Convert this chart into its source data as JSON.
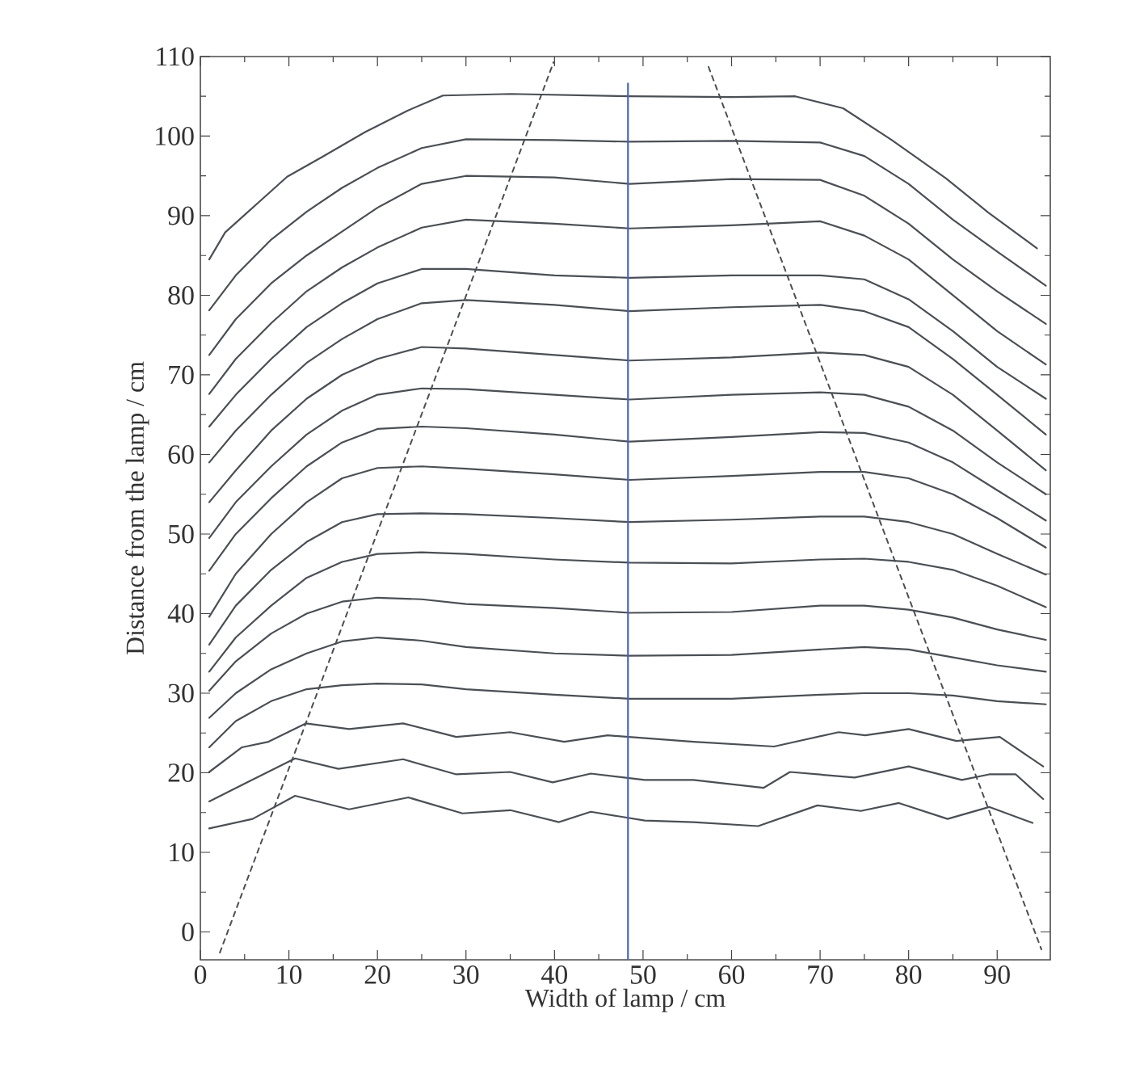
{
  "chart_data": {
    "type": "line",
    "xlabel": "Width of lamp / cm",
    "ylabel": "Distance from the lamp / cm",
    "xlim": [
      0,
      96
    ],
    "ylim": [
      -3.5,
      110
    ],
    "xticks": [
      0,
      10,
      20,
      30,
      40,
      50,
      60,
      70,
      80,
      90
    ],
    "yticks": [
      0,
      10,
      20,
      30,
      40,
      50,
      60,
      70,
      80,
      90,
      100,
      110
    ],
    "line_style": "solid",
    "x": [
      1,
      4,
      8,
      12,
      16,
      20,
      25,
      30,
      40,
      48.5,
      60,
      70,
      75,
      80,
      85,
      90,
      95.5
    ],
    "series": [
      {
        "color": "#4a4f55",
        "x": [
          1,
          2.8,
          6.5,
          9.8,
          13.8,
          18.6,
          23.4,
          27.4,
          35,
          48.5,
          60,
          67.2,
          72.6,
          78.1,
          84.2,
          89,
          94.5
        ],
        "values": [
          84.5,
          87.9,
          91.6,
          94.9,
          97.4,
          100.5,
          103.2,
          105.1,
          105.3,
          105,
          104.9,
          105,
          103.5,
          99.5,
          94.7,
          90.4,
          85.9
        ]
      },
      {
        "color": "#4a4f55",
        "values": [
          78.1,
          82.5,
          87,
          90.5,
          93.5,
          96,
          98.5,
          99.6,
          99.5,
          99.3,
          99.4,
          99.2,
          97.5,
          94,
          89.5,
          85.5,
          81.2
        ]
      },
      {
        "color": "#4a4f55",
        "values": [
          72.5,
          77,
          81.5,
          85,
          88,
          91,
          94,
          95,
          94.8,
          94,
          94.6,
          94.5,
          92.5,
          89,
          84.5,
          80.5,
          76.4
        ]
      },
      {
        "color": "#4a4f55",
        "values": [
          67.6,
          72,
          76.5,
          80.5,
          83.5,
          86,
          88.5,
          89.5,
          89,
          88.4,
          88.8,
          89.3,
          87.5,
          84.5,
          80,
          75.5,
          71.3
        ]
      },
      {
        "color": "#4a4f55",
        "values": [
          63.5,
          67.5,
          72,
          76,
          79,
          81.5,
          83.3,
          83.3,
          82.5,
          82.2,
          82.5,
          82.5,
          82,
          79.5,
          75.5,
          71,
          67
        ]
      },
      {
        "color": "#4a4f55",
        "values": [
          59,
          63,
          67.5,
          71.5,
          74.5,
          77,
          79,
          79.4,
          78.8,
          78,
          78.5,
          78.8,
          78,
          76,
          72,
          67.5,
          62.5
        ]
      },
      {
        "color": "#4a4f55",
        "values": [
          54,
          58,
          63,
          67,
          70,
          72,
          73.5,
          73.3,
          72.5,
          71.8,
          72.2,
          72.8,
          72.5,
          71,
          67.5,
          63,
          58
        ]
      },
      {
        "color": "#4a4f55",
        "values": [
          49.5,
          54,
          58.5,
          62.5,
          65.5,
          67.5,
          68.3,
          68.2,
          67.5,
          66.9,
          67.5,
          67.8,
          67.5,
          66,
          63,
          59,
          55
        ]
      },
      {
        "color": "#4a4f55",
        "values": [
          45.4,
          50,
          54.5,
          58.5,
          61.5,
          63.2,
          63.5,
          63.3,
          62.5,
          61.6,
          62.2,
          62.8,
          62.7,
          61.5,
          59,
          55.5,
          51.7
        ]
      },
      {
        "color": "#4a4f55",
        "values": [
          39.6,
          45,
          50,
          54,
          57,
          58.3,
          58.5,
          58.2,
          57.5,
          56.8,
          57.3,
          57.8,
          57.8,
          57,
          55,
          52,
          48.3
        ]
      },
      {
        "color": "#4a4f55",
        "values": [
          36.1,
          41,
          45.5,
          49,
          51.5,
          52.5,
          52.6,
          52.5,
          52,
          51.5,
          51.8,
          52.2,
          52.2,
          51.5,
          50,
          47.5,
          44.9
        ]
      },
      {
        "color": "#4a4f55",
        "values": [
          32.7,
          37,
          41,
          44.5,
          46.5,
          47.5,
          47.7,
          47.5,
          46.8,
          46.4,
          46.3,
          46.8,
          46.9,
          46.5,
          45.5,
          43.5,
          40.8
        ]
      },
      {
        "color": "#4a4f55",
        "values": [
          30.3,
          34,
          37.5,
          40,
          41.5,
          42,
          41.8,
          41.2,
          40.7,
          40.1,
          40.2,
          41,
          41,
          40.5,
          39.5,
          38,
          36.7
        ]
      },
      {
        "color": "#4a4f55",
        "values": [
          26.9,
          30,
          33,
          35,
          36.5,
          37,
          36.6,
          35.8,
          35,
          34.7,
          34.8,
          35.5,
          35.8,
          35.5,
          34.5,
          33.5,
          32.7
        ]
      },
      {
        "color": "#4a4f55",
        "values": [
          23.2,
          26.5,
          29,
          30.5,
          31,
          31.2,
          31.1,
          30.5,
          29.8,
          29.3,
          29.3,
          29.8,
          30,
          30,
          29.7,
          29,
          28.6
        ]
      },
      {
        "color": "#4a4f55",
        "x": [
          1,
          4.7,
          7.7,
          11.9,
          16.8,
          22.9,
          28.9,
          35,
          41.1,
          46,
          55.7,
          64.8,
          72.1,
          75.1,
          80,
          85.4,
          90.3,
          95.2
        ],
        "values": [
          20.1,
          23.2,
          23.9,
          26.2,
          25.5,
          26.2,
          24.5,
          25.1,
          23.9,
          24.7,
          23.9,
          23.3,
          25.1,
          24.7,
          25.5,
          24,
          24.5,
          20.8
        ]
      },
      {
        "color": "#4a4f55",
        "x": [
          1,
          5.3,
          10.7,
          15.6,
          22.9,
          28.9,
          35,
          39.8,
          44.1,
          50.2,
          55.7,
          63.6,
          66.6,
          73.9,
          80,
          86,
          89.1,
          92.1,
          95.2
        ],
        "values": [
          16.4,
          18.8,
          21.8,
          20.5,
          21.7,
          19.8,
          20.1,
          18.8,
          19.9,
          19.1,
          19.1,
          18.1,
          20.1,
          19.4,
          20.8,
          19.1,
          19.8,
          19.8,
          16.7
        ]
      },
      {
        "color": "#4a4f55",
        "x": [
          1,
          5.9,
          10.7,
          16.8,
          23.5,
          29.6,
          35,
          40.5,
          44.1,
          50.2,
          55.7,
          63,
          69.7,
          74.6,
          78.9,
          84.4,
          89.1,
          94
        ],
        "values": [
          13,
          14.2,
          17.1,
          15.4,
          16.9,
          14.9,
          15.3,
          13.8,
          15.1,
          14,
          13.8,
          13.3,
          15.9,
          15.2,
          16.2,
          14.2,
          15.7,
          13.7
        ]
      },
      {
        "color": "#4a4f55",
        "line_style": "dashed",
        "x": [
          2.2,
          39.9
        ],
        "values": [
          -2.6,
          109.3
        ]
      },
      {
        "color": "#4a4f55",
        "line_style": "dashed",
        "x": [
          57.4,
          95
        ],
        "values": [
          108.7,
          -2.2
        ]
      },
      {
        "color": "#4a63b8",
        "x": [
          48.3,
          48.3
        ],
        "values": [
          -3.5,
          106.6
        ]
      }
    ]
  }
}
